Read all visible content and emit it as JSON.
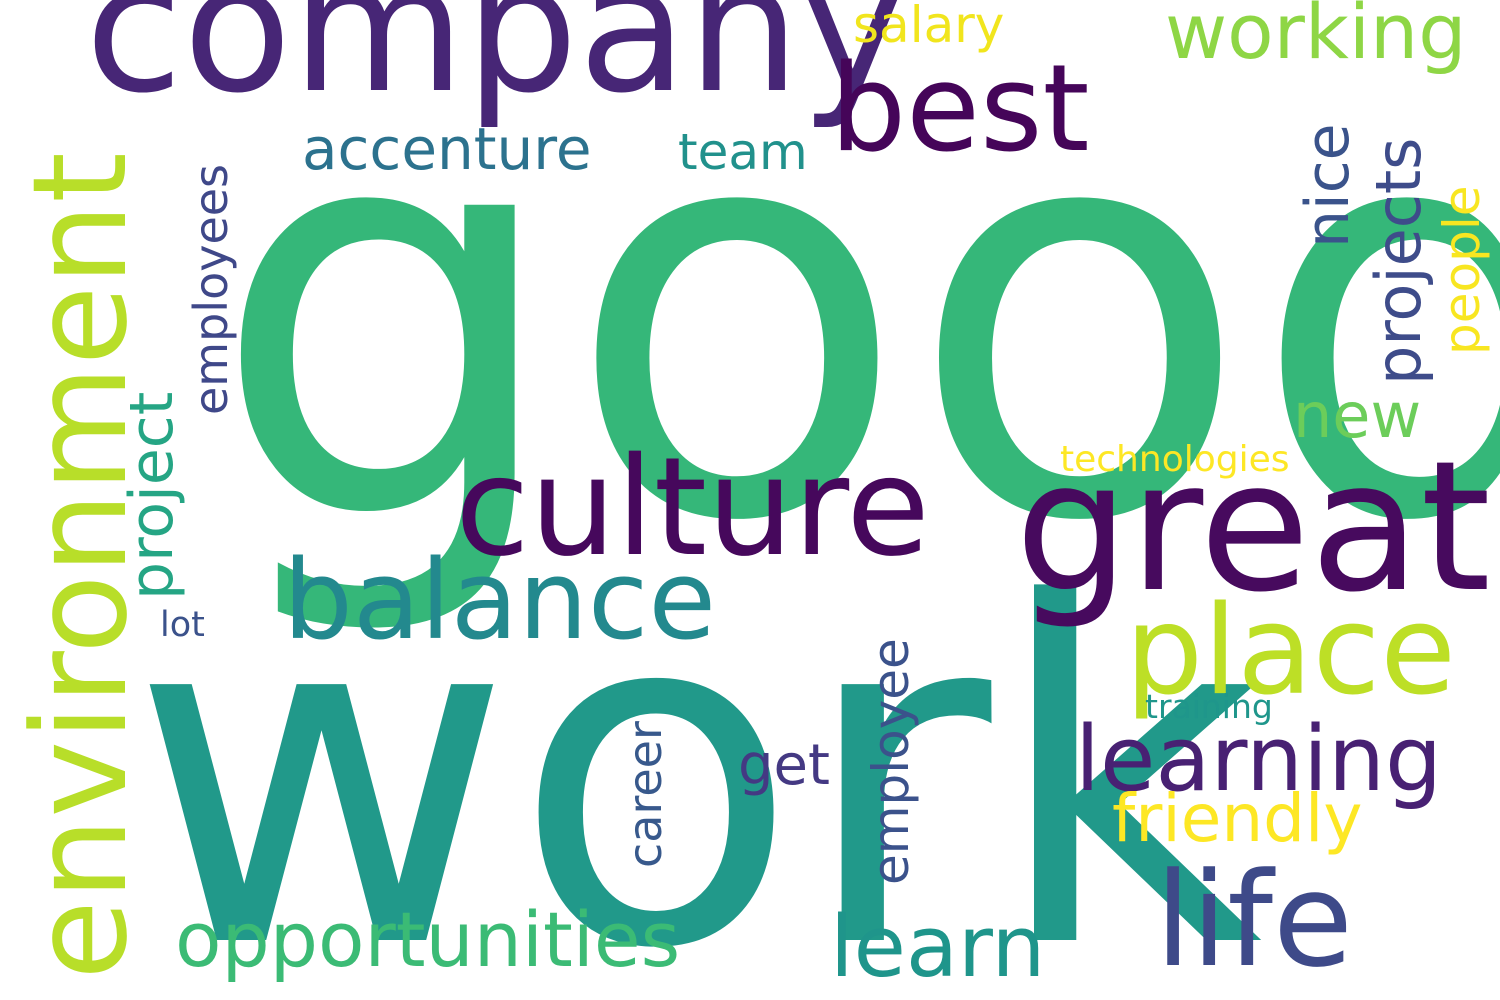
{
  "words": {
    "good": {
      "text": "good",
      "color": "#35b779"
    },
    "work": {
      "text": "work",
      "color": "#21998a"
    },
    "company": {
      "text": "company",
      "color": "#472676"
    },
    "culture": {
      "text": "culture",
      "color": "#46085c"
    },
    "great": {
      "text": "great",
      "color": "#470a5e"
    },
    "environment": {
      "text": "environment",
      "color": "#b8de29"
    },
    "best": {
      "text": "best",
      "color": "#450559"
    },
    "place": {
      "text": "place",
      "color": "#bddf26"
    },
    "balance": {
      "text": "balance",
      "color": "#23898e"
    },
    "learning": {
      "text": "learning",
      "color": "#482173"
    },
    "life": {
      "text": "life",
      "color": "#3e4a89"
    },
    "learn": {
      "text": "learn",
      "color": "#1f958b"
    },
    "opportunities": {
      "text": "opportunities",
      "color": "#3bbb75"
    },
    "friendly": {
      "text": "friendly",
      "color": "#fde725"
    },
    "working": {
      "text": "working",
      "color": "#8ed645"
    },
    "projects": {
      "text": "projects",
      "color": "#3e4c8a"
    },
    "new": {
      "text": "new",
      "color": "#6ccd5a"
    },
    "nice": {
      "text": "nice",
      "color": "#3a538b"
    },
    "people": {
      "text": "people",
      "color": "#f8e621"
    },
    "accenture": {
      "text": "accenture",
      "color": "#2c728e"
    },
    "team": {
      "text": "team",
      "color": "#21918c"
    },
    "salary": {
      "text": "salary",
      "color": "#f1e51d"
    },
    "project": {
      "text": "project",
      "color": "#25a584"
    },
    "employees": {
      "text": "employees",
      "color": "#3f4889"
    },
    "employee": {
      "text": "employee",
      "color": "#3b528b"
    },
    "career": {
      "text": "career",
      "color": "#38598c"
    },
    "get": {
      "text": "get",
      "color": "#443983"
    },
    "technologies": {
      "text": "technologies",
      "color": "#fde725"
    },
    "training": {
      "text": "training",
      "color": "#1f968b"
    },
    "lot": {
      "text": "lot",
      "color": "#3b528b"
    }
  }
}
